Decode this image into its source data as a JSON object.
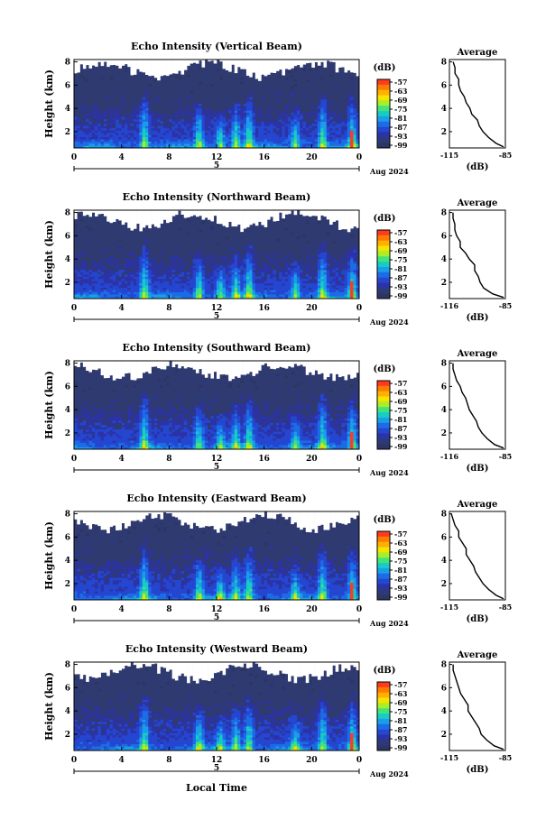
{
  "date_label": "Aug 2024",
  "xlabel": "Local Time",
  "colorbar": {
    "unit": "(dB)",
    "ticks": [
      "-57",
      "-63",
      "-69",
      "-75",
      "-81",
      "-87",
      "-93",
      "-99"
    ],
    "colors": [
      "#ff3b1f",
      "#ff7a00",
      "#ffb000",
      "#f4e400",
      "#a8ee2a",
      "#44e37a",
      "#18cbc4",
      "#1a9ee8",
      "#1c6ce6",
      "#2446d0",
      "#2c33a6",
      "#2d3a7a",
      "#2d3562"
    ]
  },
  "chart_data": [
    {
      "type": "heatmap",
      "title": "Echo Intensity (Vertical Beam)",
      "ylabel": "Height (km)",
      "x_ticks": [
        "0",
        "4",
        "8",
        "12",
        "16",
        "20",
        "0"
      ],
      "x_day_label": "5",
      "y_ticks": [
        "2",
        "4",
        "6",
        "8"
      ],
      "xlim": [
        0,
        24
      ],
      "ylim": [
        0.6,
        8.2
      ],
      "colorbar_range": [
        -99,
        -57
      ],
      "profile": {
        "title": "Average",
        "xlabel": "(dB)",
        "x_ticks": [
          "-115",
          "-85"
        ],
        "y_ticks": [
          "2",
          "4",
          "6",
          "8"
        ],
        "xlim": [
          -115,
          -85
        ],
        "ylim": [
          0.6,
          8.2
        ],
        "heights": [
          0.7,
          1.0,
          1.5,
          2.0,
          2.5,
          3.0,
          3.5,
          4.0,
          4.5,
          5.0,
          5.5,
          6.0,
          6.5,
          7.0,
          7.5,
          8.0
        ],
        "values": [
          -86,
          -90,
          -94,
          -97,
          -99,
          -100,
          -103,
          -104,
          -106,
          -107,
          -109,
          -110,
          -110,
          -112,
          -112,
          -113
        ]
      }
    },
    {
      "type": "heatmap",
      "title": "Echo Intensity (Northward Beam)",
      "ylabel": "Height (km)",
      "x_ticks": [
        "0",
        "4",
        "8",
        "12",
        "16",
        "20",
        "0"
      ],
      "x_day_label": "5",
      "y_ticks": [
        "2",
        "4",
        "6",
        "8"
      ],
      "xlim": [
        0,
        24
      ],
      "ylim": [
        0.6,
        8.2
      ],
      "colorbar_range": [
        -99,
        -57
      ],
      "profile": {
        "title": "Average",
        "xlabel": "(dB)",
        "x_ticks": [
          "-116",
          "-85"
        ],
        "y_ticks": [
          "2",
          "4",
          "6",
          "8"
        ],
        "xlim": [
          -116,
          -85
        ],
        "ylim": [
          0.6,
          8.2
        ],
        "heights": [
          0.7,
          1.0,
          1.5,
          2.0,
          2.5,
          3.0,
          3.5,
          4.0,
          4.5,
          5.0,
          5.5,
          6.0,
          6.5,
          7.0,
          7.5,
          8.0
        ],
        "values": [
          -86,
          -92,
          -97,
          -99,
          -100,
          -102,
          -102,
          -105,
          -107,
          -110,
          -110,
          -112,
          -113,
          -113,
          -114,
          -114
        ]
      }
    },
    {
      "type": "heatmap",
      "title": "Echo Intensity (Southward Beam)",
      "ylabel": "Height (km)",
      "x_ticks": [
        "0",
        "4",
        "8",
        "12",
        "16",
        "20",
        "0"
      ],
      "x_day_label": "5",
      "y_ticks": [
        "2",
        "4",
        "6",
        "8"
      ],
      "xlim": [
        0,
        24
      ],
      "ylim": [
        0.6,
        8.2
      ],
      "colorbar_range": [
        -99,
        -57
      ],
      "profile": {
        "title": "Average",
        "xlabel": "(dB)",
        "x_ticks": [
          "-116",
          "-85"
        ],
        "y_ticks": [
          "2",
          "4",
          "6",
          "8"
        ],
        "xlim": [
          -116,
          -85
        ],
        "ylim": [
          0.6,
          8.2
        ],
        "heights": [
          0.7,
          1.0,
          1.5,
          2.0,
          2.5,
          3.0,
          3.5,
          4.0,
          4.5,
          5.0,
          5.5,
          6.0,
          6.5,
          7.0,
          7.5,
          8.0
        ],
        "values": [
          -86,
          -91,
          -95,
          -98,
          -100,
          -101,
          -103,
          -105,
          -106,
          -107,
          -109,
          -110,
          -112,
          -113,
          -114,
          -114
        ]
      }
    },
    {
      "type": "heatmap",
      "title": "Echo Intensity (Eastward Beam)",
      "ylabel": "Height (km)",
      "x_ticks": [
        "0",
        "4",
        "8",
        "12",
        "16",
        "20",
        "0"
      ],
      "x_day_label": "5",
      "y_ticks": [
        "2",
        "4",
        "6",
        "8"
      ],
      "xlim": [
        0,
        24
      ],
      "ylim": [
        0.6,
        8.2
      ],
      "colorbar_range": [
        -99,
        -57
      ],
      "profile": {
        "title": "Average",
        "xlabel": "(dB)",
        "x_ticks": [
          "-115",
          "-85"
        ],
        "y_ticks": [
          "2",
          "4",
          "6",
          "8"
        ],
        "xlim": [
          -115,
          -85
        ],
        "ylim": [
          0.6,
          8.2
        ],
        "heights": [
          0.7,
          1.0,
          1.5,
          2.0,
          2.5,
          3.0,
          3.5,
          4.0,
          4.5,
          5.0,
          5.5,
          6.0,
          6.5,
          7.0,
          7.5,
          8.0
        ],
        "values": [
          -86,
          -90,
          -94,
          -97,
          -99,
          -101,
          -102,
          -104,
          -106,
          -106,
          -108,
          -110,
          -110,
          -112,
          -113,
          -114
        ]
      }
    },
    {
      "type": "heatmap",
      "title": "Echo Intensity (Westward Beam)",
      "ylabel": "Height (km)",
      "x_ticks": [
        "0",
        "4",
        "8",
        "12",
        "16",
        "20",
        "0"
      ],
      "x_day_label": "5",
      "y_ticks": [
        "2",
        "4",
        "6",
        "8"
      ],
      "xlim": [
        0,
        24
      ],
      "ylim": [
        0.6,
        8.2
      ],
      "colorbar_range": [
        -99,
        -57
      ],
      "profile": {
        "title": "Average",
        "xlabel": "(dB)",
        "x_ticks": [
          "-115",
          "-85"
        ],
        "y_ticks": [
          "2",
          "4",
          "6",
          "8"
        ],
        "xlim": [
          -115,
          -85
        ],
        "ylim": [
          0.6,
          8.2
        ],
        "heights": [
          0.7,
          1.0,
          1.5,
          2.0,
          2.5,
          3.0,
          3.5,
          4.0,
          4.5,
          5.0,
          5.5,
          6.0,
          6.5,
          7.0,
          7.5,
          8.0
        ],
        "values": [
          -86,
          -91,
          -95,
          -98,
          -99,
          -101,
          -103,
          -105,
          -105,
          -107,
          -109,
          -110,
          -111,
          -112,
          -113,
          -113
        ]
      }
    }
  ]
}
